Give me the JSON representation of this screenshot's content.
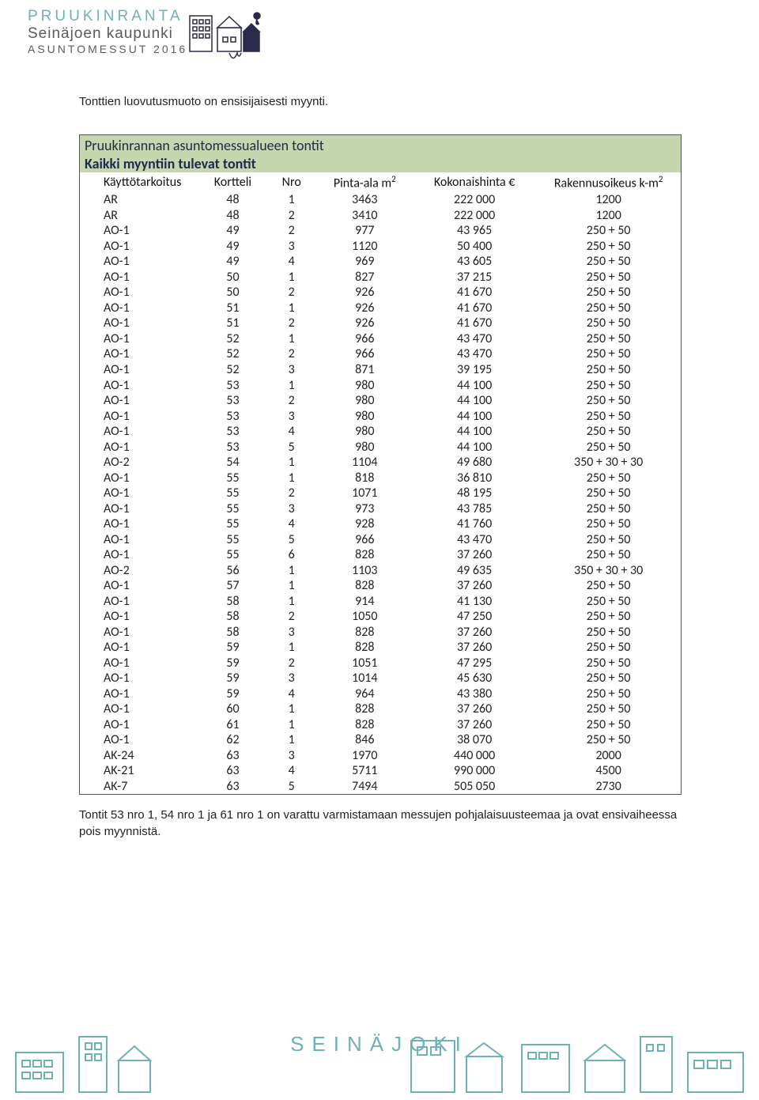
{
  "logo": {
    "line1": "PRUUKINRANTA",
    "line2": "Seinäjoen kaupunki",
    "line3": "ASUNTOMESSUT 2016"
  },
  "intro": "Tonttien luovutusmuoto on ensisijaisesti myynti.",
  "table": {
    "title1": "Pruukinrannan asuntomessualueen tontit",
    "title2": "Kaikki myyntiin tulevat tontit",
    "columns": [
      "Käyttötarkoitus",
      "Kortteli",
      "Nro",
      "Pinta-ala m",
      "Kokonaishinta €",
      "Rakennusoikeus k-m"
    ],
    "rows": [
      [
        "AR",
        "48",
        "1",
        "3463",
        "222 000",
        "1200"
      ],
      [
        "AR",
        "48",
        "2",
        "3410",
        "222 000",
        "1200"
      ],
      [
        "AO-1",
        "49",
        "2",
        "977",
        "43 965",
        "250 + 50"
      ],
      [
        "AO-1",
        "49",
        "3",
        "1120",
        "50 400",
        "250 + 50"
      ],
      [
        "AO-1",
        "49",
        "4",
        "969",
        "43 605",
        "250 + 50"
      ],
      [
        "AO-1",
        "50",
        "1",
        "827",
        "37 215",
        "250 + 50"
      ],
      [
        "AO-1",
        "50",
        "2",
        "926",
        "41 670",
        "250 + 50"
      ],
      [
        "AO-1",
        "51",
        "1",
        "926",
        "41 670",
        "250 + 50"
      ],
      [
        "AO-1",
        "51",
        "2",
        "926",
        "41 670",
        "250 + 50"
      ],
      [
        "AO-1",
        "52",
        "1",
        "966",
        "43 470",
        "250 + 50"
      ],
      [
        "AO-1",
        "52",
        "2",
        "966",
        "43 470",
        "250 + 50"
      ],
      [
        "AO-1",
        "52",
        "3",
        "871",
        "39 195",
        "250 + 50"
      ],
      [
        "AO-1",
        "53",
        "1",
        "980",
        "44 100",
        "250 + 50"
      ],
      [
        "AO-1",
        "53",
        "2",
        "980",
        "44 100",
        "250 + 50"
      ],
      [
        "AO-1",
        "53",
        "3",
        "980",
        "44 100",
        "250 + 50"
      ],
      [
        "AO-1",
        "53",
        "4",
        "980",
        "44 100",
        "250 + 50"
      ],
      [
        "AO-1",
        "53",
        "5",
        "980",
        "44 100",
        "250 + 50"
      ],
      [
        "AO-2",
        "54",
        "1",
        "1104",
        "49 680",
        "350 + 30 + 30"
      ],
      [
        "AO-1",
        "55",
        "1",
        "818",
        "36 810",
        "250 + 50"
      ],
      [
        "AO-1",
        "55",
        "2",
        "1071",
        "48 195",
        "250 + 50"
      ],
      [
        "AO-1",
        "55",
        "3",
        "973",
        "43 785",
        "250 + 50"
      ],
      [
        "AO-1",
        "55",
        "4",
        "928",
        "41 760",
        "250 + 50"
      ],
      [
        "AO-1",
        "55",
        "5",
        "966",
        "43 470",
        "250 + 50"
      ],
      [
        "AO-1",
        "55",
        "6",
        "828",
        "37 260",
        "250 + 50"
      ],
      [
        "AO-2",
        "56",
        "1",
        "1103",
        "49 635",
        "350 + 30 + 30"
      ],
      [
        "AO-1",
        "57",
        "1",
        "828",
        "37 260",
        "250 + 50"
      ],
      [
        "AO-1",
        "58",
        "1",
        "914",
        "41 130",
        "250 + 50"
      ],
      [
        "AO-1",
        "58",
        "2",
        "1050",
        "47 250",
        "250 + 50"
      ],
      [
        "AO-1",
        "58",
        "3",
        "828",
        "37 260",
        "250 + 50"
      ],
      [
        "AO-1",
        "59",
        "1",
        "828",
        "37 260",
        "250 + 50"
      ],
      [
        "AO-1",
        "59",
        "2",
        "1051",
        "47 295",
        "250 + 50"
      ],
      [
        "AO-1",
        "59",
        "3",
        "1014",
        "45 630",
        "250 + 50"
      ],
      [
        "AO-1",
        "59",
        "4",
        "964",
        "43 380",
        "250 + 50"
      ],
      [
        "AO-1",
        "60",
        "1",
        "828",
        "37 260",
        "250 + 50"
      ],
      [
        "AO-1",
        "61",
        "1",
        "828",
        "37 260",
        "250 + 50"
      ],
      [
        "AO-1",
        "62",
        "1",
        "846",
        "38 070",
        "250 + 50"
      ],
      [
        "AK-24",
        "63",
        "3",
        "1970",
        "440 000",
        "2000"
      ],
      [
        "AK-21",
        "63",
        "4",
        "5711",
        "990 000",
        "4500"
      ],
      [
        "AK-7",
        "63",
        "5",
        "7494",
        "505 050",
        "2730"
      ]
    ]
  },
  "footnote": "Tontit 53 nro 1, 54 nro 1 ja 61 nro 1 on varattu varmistamaan messujen pohjalaisuusteemaa ja ovat ensivaiheessa pois myynnistä.",
  "footer_brand": "SEINÄJOKI",
  "colors": {
    "teal": "#6fb2b5",
    "green_header": "#c6d6af",
    "dark_text": "#1e2a4a",
    "gray_text": "#5a5a5a",
    "body_text": "#222222",
    "border": "#555555",
    "background": "#ffffff"
  }
}
